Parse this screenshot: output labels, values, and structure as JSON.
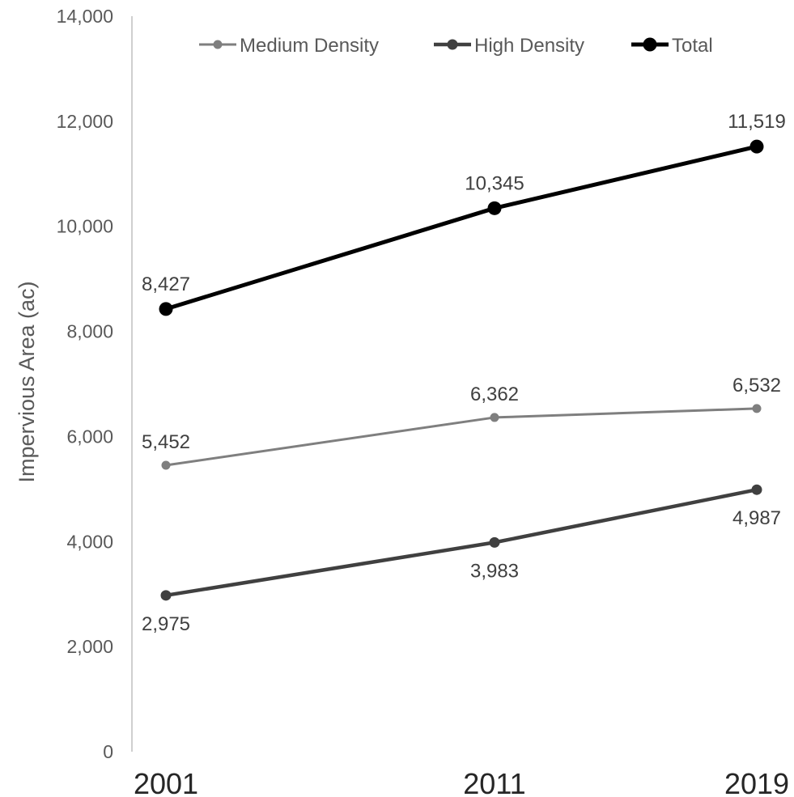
{
  "chart_data": {
    "type": "line",
    "categories": [
      "2001",
      "2011",
      "2019"
    ],
    "series": [
      {
        "name": "Medium Density",
        "values": [
          5452,
          6362,
          6532
        ],
        "labels": [
          "5,452",
          "6,362",
          "6,532"
        ],
        "color": "#7f7f7f"
      },
      {
        "name": "High Density",
        "values": [
          2975,
          3983,
          4987
        ],
        "labels": [
          "2,975",
          "3,983",
          "4,987"
        ],
        "color": "#404040"
      },
      {
        "name": "Total",
        "values": [
          8427,
          10345,
          11519
        ],
        "labels": [
          "8,427",
          "10,345",
          "11,519"
        ],
        "color": "#000000"
      }
    ],
    "ylabel": "Impervious Area (ac)",
    "ylim": [
      0,
      14000
    ],
    "y_ticks": [
      0,
      2000,
      4000,
      6000,
      8000,
      10000,
      12000,
      14000
    ],
    "y_tick_labels": [
      "0",
      "2,000",
      "4,000",
      "6,000",
      "8,000",
      "10,000",
      "12,000",
      "14,000"
    ],
    "grid": false,
    "legend_position": "top"
  }
}
